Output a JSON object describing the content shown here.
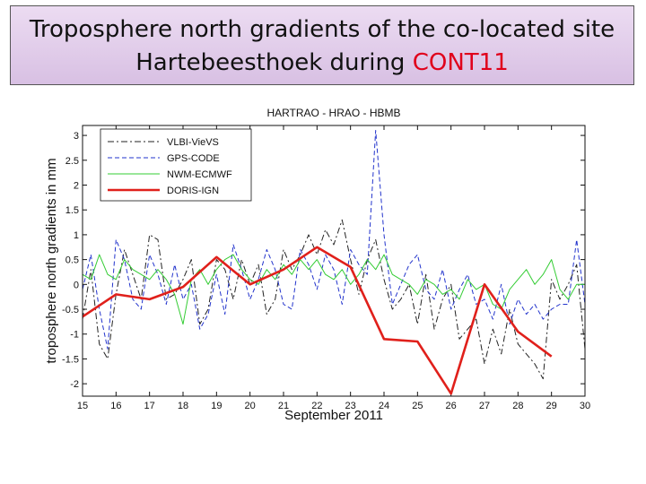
{
  "slide": {
    "title_line1": "Troposphere north gradients of the co-located site",
    "title_line2_prefix": "Hartebeesthoek during ",
    "title_line2_highlight": "CONT11",
    "highlight_color": "#e0001b"
  },
  "chart_data": {
    "type": "line",
    "title": "HARTRAO  - HRAO - HBMB",
    "xlabel": "September 2011",
    "ylabel": "troposphere north gradients in mm",
    "xlim": [
      15,
      30
    ],
    "ylim": [
      -2.25,
      3.2
    ],
    "xticks": [
      15,
      16,
      17,
      18,
      19,
      20,
      21,
      22,
      23,
      24,
      25,
      26,
      27,
      28,
      29,
      30
    ],
    "yticks": [
      -2,
      -1.5,
      -1,
      -0.5,
      0,
      0.5,
      1,
      1.5,
      2,
      2.5,
      3
    ],
    "ytick_labels": [
      "-2",
      "-1.5",
      "-1",
      "-0.5",
      "0",
      "0.5",
      "1",
      "1.5",
      "2",
      "2.5",
      "3"
    ],
    "legend_position": "top-left",
    "series": [
      {
        "name": "VLBI-VieVS",
        "color": "#222222",
        "style": "dashdot",
        "width": 1,
        "x": [
          15,
          15.25,
          15.5,
          15.75,
          16,
          16.25,
          16.5,
          16.75,
          17,
          17.25,
          17.5,
          17.75,
          18,
          18.25,
          18.5,
          18.75,
          19,
          19.25,
          19.5,
          19.75,
          20,
          20.25,
          20.5,
          20.75,
          21,
          21.25,
          21.5,
          21.75,
          22,
          22.25,
          22.5,
          22.75,
          23,
          23.25,
          23.5,
          23.75,
          24,
          24.25,
          24.5,
          24.75,
          25,
          25.25,
          25.5,
          25.75,
          26,
          26.25,
          26.5,
          26.75,
          27,
          27.25,
          27.5,
          27.75,
          28,
          28.25,
          28.5,
          28.75,
          29,
          29.25,
          29.5,
          29.75,
          30
        ],
        "y": [
          -0.7,
          0.3,
          -1.2,
          -1.5,
          -0.2,
          0.7,
          0.2,
          -0.3,
          1.0,
          0.9,
          -0.3,
          -0.2,
          0.1,
          0.5,
          -0.8,
          -0.5,
          0.5,
          0.3,
          -0.3,
          0.5,
          0.0,
          0.4,
          -0.6,
          -0.3,
          0.7,
          0.3,
          0.6,
          1.0,
          0.6,
          1.1,
          0.8,
          1.3,
          0.5,
          -0.2,
          0.5,
          0.9,
          0.1,
          -0.5,
          -0.3,
          0.0,
          -0.8,
          0.2,
          -0.9,
          -0.3,
          0.0,
          -1.1,
          -0.9,
          -0.7,
          -1.6,
          -0.9,
          -1.4,
          -0.5,
          -1.2,
          -1.4,
          -1.6,
          -1.9,
          0.1,
          -0.3,
          0.0,
          0.4,
          -1.3
        ]
      },
      {
        "name": "GPS-CODE",
        "color": "#2233cc",
        "style": "dashed",
        "width": 1,
        "x": [
          15,
          15.25,
          15.5,
          15.75,
          16,
          16.25,
          16.5,
          16.75,
          17,
          17.25,
          17.5,
          17.75,
          18,
          18.25,
          18.5,
          18.75,
          19,
          19.25,
          19.5,
          19.75,
          20,
          20.25,
          20.5,
          20.75,
          21,
          21.25,
          21.5,
          21.75,
          22,
          22.25,
          22.5,
          22.75,
          23,
          23.25,
          23.5,
          23.75,
          24,
          24.25,
          24.5,
          24.75,
          25,
          25.25,
          25.5,
          25.75,
          26,
          26.25,
          26.5,
          26.75,
          27,
          27.25,
          27.5,
          27.75,
          28,
          28.25,
          28.5,
          28.75,
          29,
          29.25,
          29.5,
          29.75,
          30
        ],
        "y": [
          -0.1,
          0.6,
          -0.5,
          -1.3,
          0.9,
          0.5,
          -0.3,
          -0.5,
          0.6,
          0.2,
          -0.4,
          0.4,
          -0.3,
          0.0,
          -0.9,
          -0.6,
          0.2,
          -0.6,
          0.8,
          0.3,
          -0.3,
          0.1,
          0.7,
          0.3,
          -0.4,
          -0.5,
          0.7,
          0.4,
          -0.1,
          0.6,
          0.3,
          -0.4,
          0.7,
          0.4,
          0.2,
          3.1,
          1.0,
          -0.4,
          0.0,
          0.4,
          0.6,
          -0.1,
          -0.3,
          0.3,
          -0.5,
          -0.1,
          0.2,
          -0.4,
          -0.3,
          -0.7,
          0.0,
          -0.8,
          -0.3,
          -0.6,
          -0.4,
          -0.7,
          -0.5,
          -0.4,
          -0.4,
          0.9,
          -0.4
        ]
      },
      {
        "name": "NWM-ECMWF",
        "color": "#33cc33",
        "style": "solid",
        "width": 1,
        "x": [
          15,
          15.25,
          15.5,
          15.75,
          16,
          16.25,
          16.5,
          16.75,
          17,
          17.25,
          17.5,
          17.75,
          18,
          18.25,
          18.5,
          18.75,
          19,
          19.25,
          19.5,
          19.75,
          20,
          20.25,
          20.5,
          20.75,
          21,
          21.25,
          21.5,
          21.75,
          22,
          22.25,
          22.5,
          22.75,
          23,
          23.25,
          23.5,
          23.75,
          24,
          24.25,
          24.5,
          24.75,
          25,
          25.25,
          25.5,
          25.75,
          26,
          26.25,
          26.5,
          26.75,
          27,
          27.25,
          27.5,
          27.75,
          28,
          28.25,
          28.5,
          28.75,
          29,
          29.25,
          29.5,
          29.75,
          30
        ],
        "y": [
          0.2,
          0.1,
          0.6,
          0.2,
          0.1,
          0.5,
          0.3,
          0.2,
          0.1,
          0.3,
          0.1,
          -0.2,
          -0.8,
          0.1,
          0.3,
          0.0,
          0.3,
          0.5,
          0.6,
          0.3,
          0.1,
          0.0,
          0.3,
          0.1,
          0.4,
          0.2,
          0.5,
          0.3,
          0.5,
          0.2,
          0.1,
          0.3,
          0.0,
          0.2,
          0.5,
          0.3,
          0.6,
          0.2,
          0.1,
          0.0,
          -0.2,
          0.1,
          0.0,
          -0.2,
          -0.1,
          -0.3,
          0.1,
          -0.1,
          0.0,
          -0.4,
          -0.5,
          -0.1,
          0.1,
          0.3,
          0.0,
          0.2,
          0.5,
          -0.1,
          -0.3,
          0.0,
          0.0
        ]
      },
      {
        "name": "DORIS-IGN",
        "color": "#e0201b",
        "style": "solid",
        "width": 2.6,
        "x": [
          15,
          16,
          17,
          18,
          19,
          20,
          21,
          22,
          23,
          24,
          25,
          26,
          27,
          28,
          29
        ],
        "y": [
          -0.65,
          -0.2,
          -0.3,
          -0.05,
          0.55,
          0.0,
          0.3,
          0.75,
          0.35,
          -1.1,
          -1.15,
          -2.2,
          0.0,
          -0.95,
          -1.45
        ]
      }
    ]
  }
}
